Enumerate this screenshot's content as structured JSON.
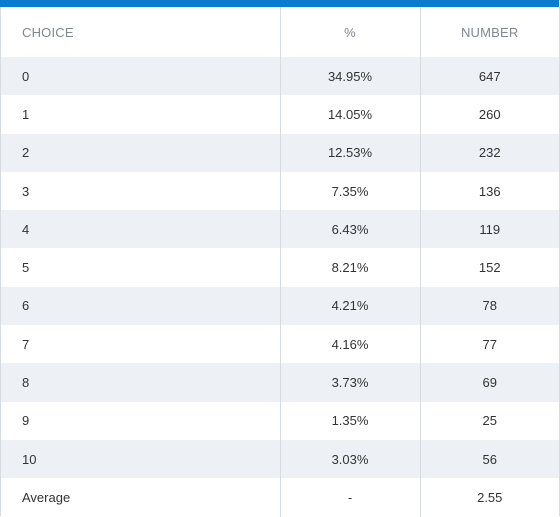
{
  "table": {
    "headers": [
      "CHOICE",
      "%",
      "NUMBER"
    ],
    "rows": [
      {
        "choice": "0",
        "percent": "34.95%",
        "number": "647"
      },
      {
        "choice": "1",
        "percent": "14.05%",
        "number": "260"
      },
      {
        "choice": "2",
        "percent": "12.53%",
        "number": "232"
      },
      {
        "choice": "3",
        "percent": "7.35%",
        "number": "136"
      },
      {
        "choice": "4",
        "percent": "6.43%",
        "number": "119"
      },
      {
        "choice": "5",
        "percent": "8.21%",
        "number": "152"
      },
      {
        "choice": "6",
        "percent": "4.21%",
        "number": "78"
      },
      {
        "choice": "7",
        "percent": "4.16%",
        "number": "77"
      },
      {
        "choice": "8",
        "percent": "3.73%",
        "number": "69"
      },
      {
        "choice": "9",
        "percent": "1.35%",
        "number": "25"
      },
      {
        "choice": "10",
        "percent": "3.03%",
        "number": "56"
      },
      {
        "choice": "Average",
        "percent": "-",
        "number": "2.55"
      }
    ]
  },
  "colors": {
    "accent_bar": "#0a7bcf",
    "stripe": "#edf1f5",
    "header_text": "#808890",
    "border": "#d6dbe0"
  }
}
